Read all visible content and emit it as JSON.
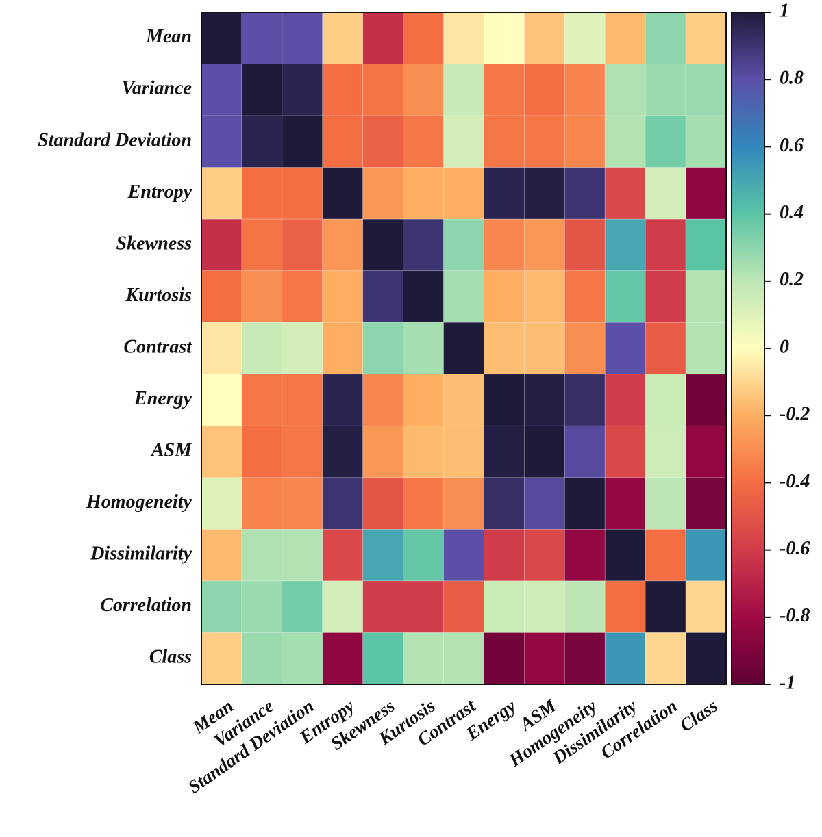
{
  "chart_data": {
    "type": "heatmap",
    "title": "",
    "xlabel": "",
    "ylabel": "",
    "labels": [
      "Mean",
      "Variance",
      "Standard Deviation",
      "Entropy",
      "Skewness",
      "Kurtosis",
      "Contrast",
      "Energy",
      "ASM",
      "Homogeneity",
      "Dissimilarity",
      "Correlation",
      "Class"
    ],
    "value_range": [
      -1,
      1
    ],
    "colorbar_ticks": [
      {
        "value": 1,
        "label": "1"
      },
      {
        "value": 0.8,
        "label": "0.8"
      },
      {
        "value": 0.6,
        "label": "0.6"
      },
      {
        "value": 0.4,
        "label": "0.4"
      },
      {
        "value": 0.2,
        "label": "0.2"
      },
      {
        "value": 0,
        "label": "0"
      },
      {
        "value": -0.2,
        "label": "-0.2"
      },
      {
        "value": -0.4,
        "label": "-0.4"
      },
      {
        "value": -0.6,
        "label": "-0.6"
      },
      {
        "value": -0.8,
        "label": "-0.8"
      },
      {
        "value": -1,
        "label": "-1"
      }
    ],
    "colormap": [
      {
        "v": -1.0,
        "color": "#5e0134"
      },
      {
        "v": -0.8,
        "color": "#a00a45"
      },
      {
        "v": -0.6,
        "color": "#d13c4b"
      },
      {
        "v": -0.4,
        "color": "#f46d43"
      },
      {
        "v": -0.2,
        "color": "#fdae61"
      },
      {
        "v": 0.0,
        "color": "#fffebe"
      },
      {
        "v": 0.2,
        "color": "#bee6b4"
      },
      {
        "v": 0.4,
        "color": "#5bc4a5"
      },
      {
        "v": 0.6,
        "color": "#3288bd"
      },
      {
        "v": 0.8,
        "color": "#5b4fa8"
      },
      {
        "v": 1.0,
        "color": "#1e1b3a"
      }
    ],
    "matrix": [
      [
        1.0,
        0.8,
        0.8,
        -0.12,
        -0.65,
        -0.4,
        -0.06,
        0.0,
        -0.15,
        0.1,
        -0.17,
        0.3,
        -0.12
      ],
      [
        0.8,
        1.0,
        0.96,
        -0.4,
        -0.38,
        -0.3,
        0.17,
        -0.37,
        -0.4,
        -0.33,
        0.23,
        0.27,
        0.27
      ],
      [
        0.8,
        0.96,
        1.0,
        -0.4,
        -0.45,
        -0.37,
        0.14,
        -0.37,
        -0.37,
        -0.32,
        0.22,
        0.35,
        0.25
      ],
      [
        -0.12,
        -0.4,
        -0.4,
        1.0,
        -0.27,
        -0.2,
        -0.2,
        0.96,
        0.98,
        0.9,
        -0.55,
        0.14,
        -0.85
      ],
      [
        -0.65,
        -0.38,
        -0.45,
        -0.27,
        1.0,
        0.9,
        0.3,
        -0.32,
        -0.27,
        -0.5,
        0.5,
        -0.6,
        0.4
      ],
      [
        -0.4,
        -0.3,
        -0.37,
        -0.2,
        0.9,
        1.0,
        0.25,
        -0.2,
        -0.17,
        -0.37,
        0.38,
        -0.6,
        0.22
      ],
      [
        -0.06,
        0.17,
        0.14,
        -0.2,
        0.3,
        0.25,
        1.0,
        -0.16,
        -0.16,
        -0.3,
        0.8,
        -0.47,
        0.22
      ],
      [
        0.0,
        -0.37,
        -0.37,
        0.96,
        -0.32,
        -0.2,
        -0.16,
        1.0,
        0.98,
        0.92,
        -0.6,
        0.16,
        -0.94
      ],
      [
        -0.15,
        -0.4,
        -0.37,
        0.98,
        -0.27,
        -0.17,
        -0.16,
        0.98,
        1.0,
        0.82,
        -0.55,
        0.15,
        -0.84
      ],
      [
        0.1,
        -0.33,
        -0.32,
        0.9,
        -0.5,
        -0.37,
        -0.3,
        0.92,
        0.82,
        1.0,
        -0.84,
        0.2,
        -0.92
      ],
      [
        -0.17,
        0.23,
        0.22,
        -0.55,
        0.5,
        0.38,
        0.8,
        -0.6,
        -0.55,
        -0.84,
        1.0,
        -0.4,
        0.55
      ],
      [
        0.3,
        0.27,
        0.35,
        0.14,
        -0.6,
        -0.6,
        -0.47,
        0.16,
        0.15,
        0.2,
        -0.4,
        1.0,
        -0.1
      ],
      [
        -0.12,
        0.27,
        0.25,
        -0.85,
        0.4,
        0.22,
        0.22,
        -0.94,
        -0.84,
        -0.92,
        0.55,
        -0.1,
        1.0
      ]
    ]
  }
}
